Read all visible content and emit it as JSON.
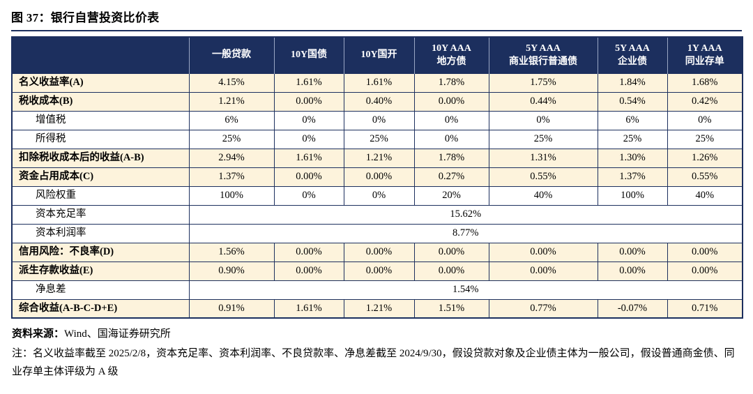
{
  "title": "图 37：银行自营投资比价表",
  "chart_data": {
    "type": "table",
    "title": "银行自营投资比价表",
    "columns": [
      [
        ""
      ],
      [
        "一般贷款"
      ],
      [
        "10Y国债"
      ],
      [
        "10Y国开"
      ],
      [
        "10Y AAA",
        "地方债"
      ],
      [
        "5Y AAA",
        "商业银行普通债"
      ],
      [
        "5Y AAA",
        "企业债"
      ],
      [
        "1Y AAA",
        "同业存单"
      ]
    ],
    "rows": [
      {
        "label": "名义收益率(A)",
        "emphasis": true,
        "values": [
          "4.15%",
          "1.61%",
          "1.61%",
          "1.78%",
          "1.75%",
          "1.84%",
          "1.68%"
        ]
      },
      {
        "label": "税收成本(B)",
        "emphasis": true,
        "values": [
          "1.21%",
          "0.00%",
          "0.40%",
          "0.00%",
          "0.44%",
          "0.54%",
          "0.42%"
        ]
      },
      {
        "label": "增值税",
        "emphasis": false,
        "values": [
          "6%",
          "0%",
          "0%",
          "0%",
          "0%",
          "6%",
          "0%"
        ]
      },
      {
        "label": "所得税",
        "emphasis": false,
        "values": [
          "25%",
          "0%",
          "25%",
          "0%",
          "25%",
          "25%",
          "25%"
        ]
      },
      {
        "label": "扣除税收成本后的收益(A-B)",
        "emphasis": true,
        "values": [
          "2.94%",
          "1.61%",
          "1.21%",
          "1.78%",
          "1.31%",
          "1.30%",
          "1.26%"
        ]
      },
      {
        "label": "资金占用成本(C)",
        "emphasis": true,
        "values": [
          "1.37%",
          "0.00%",
          "0.00%",
          "0.27%",
          "0.55%",
          "1.37%",
          "0.55%"
        ]
      },
      {
        "label": "风险权重",
        "emphasis": false,
        "values": [
          "100%",
          "0%",
          "0%",
          "20%",
          "40%",
          "100%",
          "40%"
        ]
      },
      {
        "label": "资本充足率",
        "emphasis": false,
        "merged_value": "15.62%"
      },
      {
        "label": "资本利润率",
        "emphasis": false,
        "merged_value": "8.77%"
      },
      {
        "label": "信用风险：不良率(D)",
        "emphasis": true,
        "values": [
          "1.56%",
          "0.00%",
          "0.00%",
          "0.00%",
          "0.00%",
          "0.00%",
          "0.00%"
        ]
      },
      {
        "label": "派生存款收益(E)",
        "emphasis": true,
        "values": [
          "0.90%",
          "0.00%",
          "0.00%",
          "0.00%",
          "0.00%",
          "0.00%",
          "0.00%"
        ]
      },
      {
        "label": "净息差",
        "emphasis": false,
        "merged_value": "1.54%"
      },
      {
        "label": "综合收益(A-B-C-D+E)",
        "emphasis": true,
        "values": [
          "0.91%",
          "1.61%",
          "1.21%",
          "1.51%",
          "0.77%",
          "-0.07%",
          "0.71%"
        ]
      }
    ]
  },
  "colors": {
    "header_bg": "#1c2f5e",
    "highlight_row_bg": "#fdf3dc",
    "border": "#1c2f5e"
  },
  "footer": {
    "source_label": "资料来源：",
    "source_text": "Wind、国海证券研究所",
    "note": "注：名义收益率截至 2025/2/8，资本充足率、资本利润率、不良贷款率、净息差截至 2024/9/30，假设贷款对象及企业债主体为一般公司，假设普通商金债、同业存单主体评级为 A 级"
  }
}
